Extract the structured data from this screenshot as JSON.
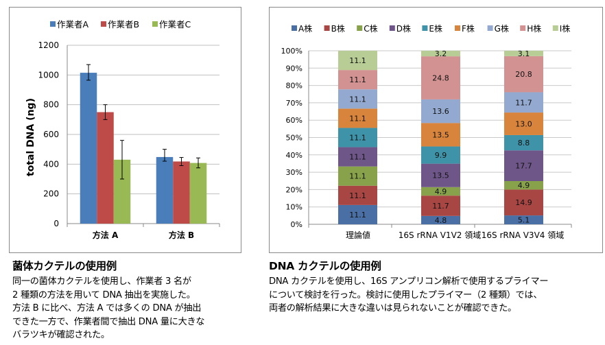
{
  "chart_data": [
    {
      "type": "bar",
      "ylabel": "total DNA (ng)",
      "categories": [
        "方法 A",
        "方法 B"
      ],
      "ylim": [
        0,
        1200
      ],
      "yticks": [
        0,
        200,
        400,
        600,
        800,
        1000,
        1200
      ],
      "grid": true,
      "legend": "top",
      "error_bars": true,
      "series": [
        {
          "name": "作業者A",
          "color": "#4a7ebb",
          "values": [
            1015,
            448
          ],
          "err_low": [
            965,
            420
          ],
          "err_high": [
            1070,
            500
          ]
        },
        {
          "name": "作業者B",
          "color": "#be4b48",
          "values": [
            750,
            418
          ],
          "err_low": [
            700,
            390
          ],
          "err_high": [
            800,
            445
          ]
        },
        {
          "name": "作業者C",
          "color": "#98b954",
          "values": [
            430,
            408
          ],
          "err_low": [
            300,
            375
          ],
          "err_high": [
            560,
            442
          ]
        }
      ]
    },
    {
      "type": "bar",
      "stacked": true,
      "percent": true,
      "categories": [
        "理論値",
        "16S rRNA V1V2 領域",
        "16S rRNA V3V4 領域"
      ],
      "ylim": [
        0,
        100
      ],
      "yticks": [
        "0%",
        "10%",
        "20%",
        "30%",
        "40%",
        "50%",
        "60%",
        "70%",
        "80%",
        "90%",
        "100%"
      ],
      "grid": true,
      "legend": "top",
      "series": [
        {
          "name": "A株",
          "color": "#4a6fa5",
          "values": [
            11.1,
            4.8,
            5.1
          ]
        },
        {
          "name": "B株",
          "color": "#a84643",
          "values": [
            11.1,
            11.7,
            14.9
          ]
        },
        {
          "name": "C株",
          "color": "#87a24a",
          "values": [
            11.1,
            4.9,
            4.9
          ]
        },
        {
          "name": "D株",
          "color": "#6e5689",
          "values": [
            11.1,
            13.5,
            17.7
          ]
        },
        {
          "name": "E株",
          "color": "#3f93a8",
          "values": [
            11.1,
            9.9,
            8.8
          ]
        },
        {
          "name": "F株",
          "color": "#d9843c",
          "values": [
            11.1,
            13.5,
            13.0
          ]
        },
        {
          "name": "G株",
          "color": "#93a9cf",
          "values": [
            11.1,
            13.6,
            11.7
          ]
        },
        {
          "name": "H株",
          "color": "#d29291",
          "values": [
            11.1,
            24.8,
            20.8
          ]
        },
        {
          "name": "I株",
          "color": "#b8cd95",
          "values": [
            11.1,
            3.2,
            3.1
          ]
        }
      ]
    }
  ],
  "captions": {
    "left": {
      "title": "菌体カクテルの使用例",
      "lines": [
        "同一の菌体カクテルを使用し、作業者 3 名が",
        "2 種類の方法を用いて DNA 抽出を実施した。",
        "方法 B に比べ、方法 A では多くの DNA が抽出",
        "できた一方で、作業者間で抽出 DNA 量に大きな",
        "バラツキが確認された。"
      ]
    },
    "right": {
      "title": "DNA カクテルの使用例",
      "lines": [
        "DNA カクテルを使用し、16S アンプリコン解析で使用するプライマー",
        "について検討を行った。検討に使用したプライマー（2 種類）では、",
        "両者の解析結果に大きな違いは見られないことが確認できた。"
      ]
    }
  }
}
